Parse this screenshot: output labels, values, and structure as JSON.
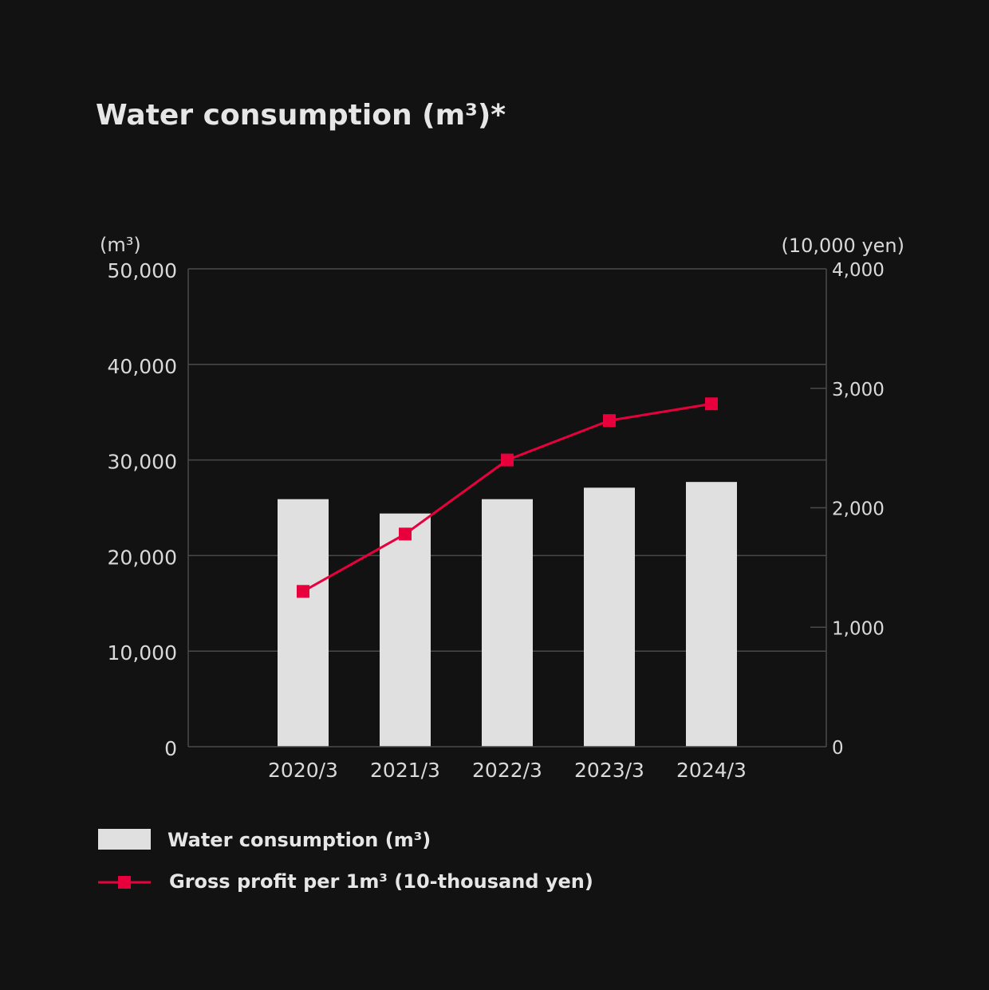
{
  "chart_data": {
    "type": "bar",
    "title": "Water consumption (m³)*",
    "categories": [
      "2020/3",
      "2021/3",
      "2022/3",
      "2023/3",
      "2024/3"
    ],
    "series": [
      {
        "name": "Water consumption (m³)",
        "type": "bar",
        "axis": "left",
        "values": [
          25900,
          24400,
          25900,
          27100,
          27700
        ],
        "color": "#e0e0e0"
      },
      {
        "name": "Gross profit per 1m³ (10-thousand yen)",
        "type": "line",
        "axis": "right",
        "values": [
          1300,
          1780,
          2400,
          2730,
          2870
        ],
        "color": "#e8003d"
      }
    ],
    "left_axis": {
      "unit": "(m³)",
      "ylim": [
        0,
        50000
      ],
      "ticks": [
        0,
        10000,
        20000,
        30000,
        40000,
        50000
      ],
      "tick_labels": [
        "0",
        "10,000",
        "20,000",
        "30,000",
        "40,000",
        "50,000"
      ]
    },
    "right_axis": {
      "unit": "(10,000 yen)",
      "ylim": [
        0,
        4000
      ],
      "ticks": [
        0,
        1000,
        2000,
        3000,
        4000
      ],
      "tick_labels": [
        "0",
        "1,000",
        "2,000",
        "3,000",
        "4,000"
      ]
    },
    "grid": true,
    "legend_position": "bottom-left"
  },
  "colors": {
    "background": "#121212",
    "grid": "#4a4a4a",
    "bar": "#e0e0e0",
    "line": "#e8003d"
  }
}
